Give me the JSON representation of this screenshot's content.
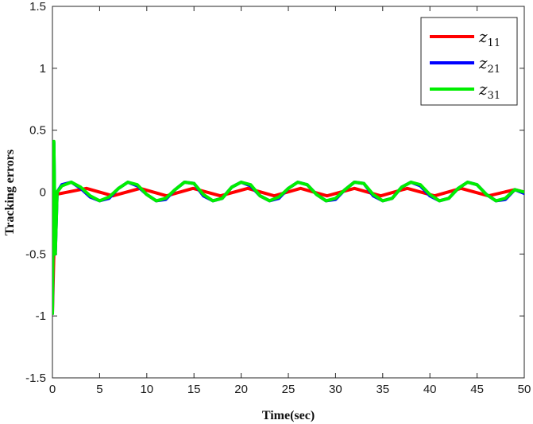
{
  "chart_data": {
    "type": "line",
    "title": "",
    "xlabel": "Time(sec)",
    "ylabel": "Tracking errors",
    "xlim": [
      0,
      50
    ],
    "ylim": [
      -1.5,
      1.5
    ],
    "x_ticks": [
      0,
      5,
      10,
      15,
      20,
      25,
      30,
      35,
      40,
      45,
      50
    ],
    "y_ticks": [
      1.5,
      1,
      0.5,
      0,
      -0.5,
      -1,
      -1.5
    ],
    "y_tick_labels": [
      "1.5",
      "1",
      "0.5",
      "0",
      "-0.5",
      "-1",
      "-1.5"
    ],
    "grid": false,
    "legend_position": "top-right",
    "series": [
      {
        "name": "z",
        "subscript": "11",
        "color": "#ff0000",
        "x": [
          0,
          0.3,
          3.6,
          6.4,
          9.3,
          12.1,
          14.9,
          17.8,
          20.7,
          23.5,
          26.3,
          29.1,
          32.0,
          34.8,
          37.6,
          40.5,
          43.3,
          46.2,
          49.0,
          50
        ],
        "y": [
          -0.98,
          -0.02,
          0.03,
          -0.03,
          0.03,
          -0.03,
          0.03,
          -0.03,
          0.03,
          -0.03,
          0.03,
          -0.03,
          0.03,
          -0.03,
          0.03,
          -0.03,
          0.03,
          -0.03,
          0.02,
          0.0
        ]
      },
      {
        "name": "z",
        "subscript": "21",
        "color": "#0000ff",
        "x": [
          0,
          0.15,
          0.3,
          0.5,
          1.0,
          2.0,
          3.0,
          4.0,
          5.0,
          6.0,
          7.0,
          8.0,
          9.0,
          10.0,
          11.0,
          12.0,
          13.0,
          14.0,
          15.0,
          16.0,
          17.0,
          18.0,
          19.0,
          20.0,
          21.0,
          22.0,
          23.0,
          24.0,
          25.0,
          26.0,
          27.0,
          28.0,
          29.0,
          30.0,
          31.0,
          32.0,
          33.0,
          34.0,
          35.0,
          36.0,
          37.0,
          38.0,
          39.0,
          40.0,
          41.0,
          42.0,
          43.0,
          44.0,
          45.0,
          46.0,
          47.0,
          48.0,
          49.0,
          50.0
        ],
        "y": [
          -0.98,
          0.4,
          -0.5,
          0.0,
          0.06,
          0.08,
          0.03,
          -0.04,
          -0.07,
          -0.05,
          0.03,
          0.08,
          0.05,
          -0.02,
          -0.07,
          -0.06,
          0.02,
          0.08,
          0.07,
          -0.03,
          -0.07,
          -0.05,
          0.04,
          0.08,
          0.05,
          -0.03,
          -0.07,
          -0.05,
          0.03,
          0.08,
          0.06,
          -0.02,
          -0.07,
          -0.06,
          0.02,
          0.08,
          0.07,
          -0.03,
          -0.07,
          -0.05,
          0.04,
          0.08,
          0.05,
          -0.03,
          -0.07,
          -0.05,
          0.03,
          0.08,
          0.06,
          -0.02,
          -0.07,
          -0.06,
          0.02,
          -0.01
        ]
      },
      {
        "name": "z",
        "subscript": "31",
        "color": "#00ee00",
        "x": [
          0,
          0.15,
          0.3,
          0.5,
          1.0,
          2.0,
          3.0,
          4.0,
          5.0,
          6.0,
          7.0,
          8.0,
          9.0,
          10.0,
          11.0,
          12.0,
          13.0,
          14.0,
          15.0,
          16.0,
          17.0,
          18.0,
          19.0,
          20.0,
          21.0,
          22.0,
          23.0,
          24.0,
          25.0,
          26.0,
          27.0,
          28.0,
          29.0,
          30.0,
          31.0,
          32.0,
          33.0,
          34.0,
          35.0,
          36.0,
          37.0,
          38.0,
          39.0,
          40.0,
          41.0,
          42.0,
          43.0,
          44.0,
          45.0,
          46.0,
          47.0,
          48.0,
          49.0,
          50.0
        ],
        "y": [
          -0.98,
          0.41,
          -0.5,
          0.0,
          0.05,
          0.08,
          0.04,
          -0.03,
          -0.07,
          -0.04,
          0.03,
          0.08,
          0.06,
          -0.02,
          -0.07,
          -0.05,
          0.02,
          0.08,
          0.07,
          -0.02,
          -0.07,
          -0.05,
          0.04,
          0.08,
          0.06,
          -0.03,
          -0.07,
          -0.04,
          0.03,
          0.08,
          0.06,
          -0.02,
          -0.07,
          -0.05,
          0.02,
          0.08,
          0.07,
          -0.02,
          -0.07,
          -0.05,
          0.04,
          0.08,
          0.06,
          -0.02,
          -0.07,
          -0.05,
          0.03,
          0.08,
          0.06,
          -0.02,
          -0.07,
          -0.05,
          0.02,
          0.0
        ]
      }
    ]
  }
}
